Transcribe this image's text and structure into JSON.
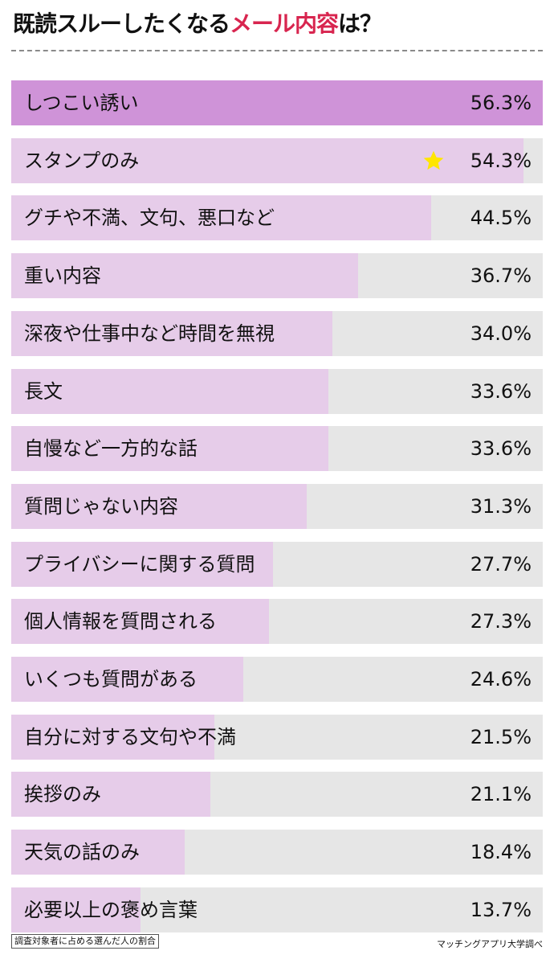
{
  "title": {
    "main": "既読スルーしたくなる",
    "accent": "メール内容",
    "suffix": "は？",
    "accent_color": "#d8254f"
  },
  "chart_data": {
    "type": "bar",
    "orientation": "horizontal",
    "unit": "%",
    "xlim": [
      0,
      56.3
    ],
    "bar_color": "#e6cce9",
    "highlight_color": "#cf93d8",
    "track_color": "#e6e6e6",
    "star_marker_category": "スタンプのみ",
    "categories": [
      "しつこい誘い",
      "スタンプのみ",
      "グチや不満、文句、悪口など",
      "重い内容",
      "深夜や仕事中など時間を無視",
      "長文",
      "自慢など一方的な話",
      "質問じゃない内容",
      "プライバシーに関する質問",
      "個人情報を質問される",
      "いくつも質問がある",
      "自分に対する文句や不満",
      "挨拶のみ",
      "天気の話のみ",
      "必要以上の褒め言葉"
    ],
    "values": [
      56.3,
      54.3,
      44.5,
      36.7,
      34.0,
      33.6,
      33.6,
      31.3,
      27.7,
      27.3,
      24.6,
      21.5,
      21.1,
      18.4,
      13.7
    ],
    "value_labels": [
      "56.3%",
      "54.3%",
      "44.5%",
      "36.7%",
      "34.0%",
      "33.6%",
      "33.6%",
      "31.3%",
      "27.7%",
      "27.3%",
      "24.6%",
      "21.5%",
      "21.1%",
      "18.4%",
      "13.7%"
    ]
  },
  "footnote": "調査対象者に占める選んだ人の割合",
  "source": "マッチングアプリ大学調べ"
}
